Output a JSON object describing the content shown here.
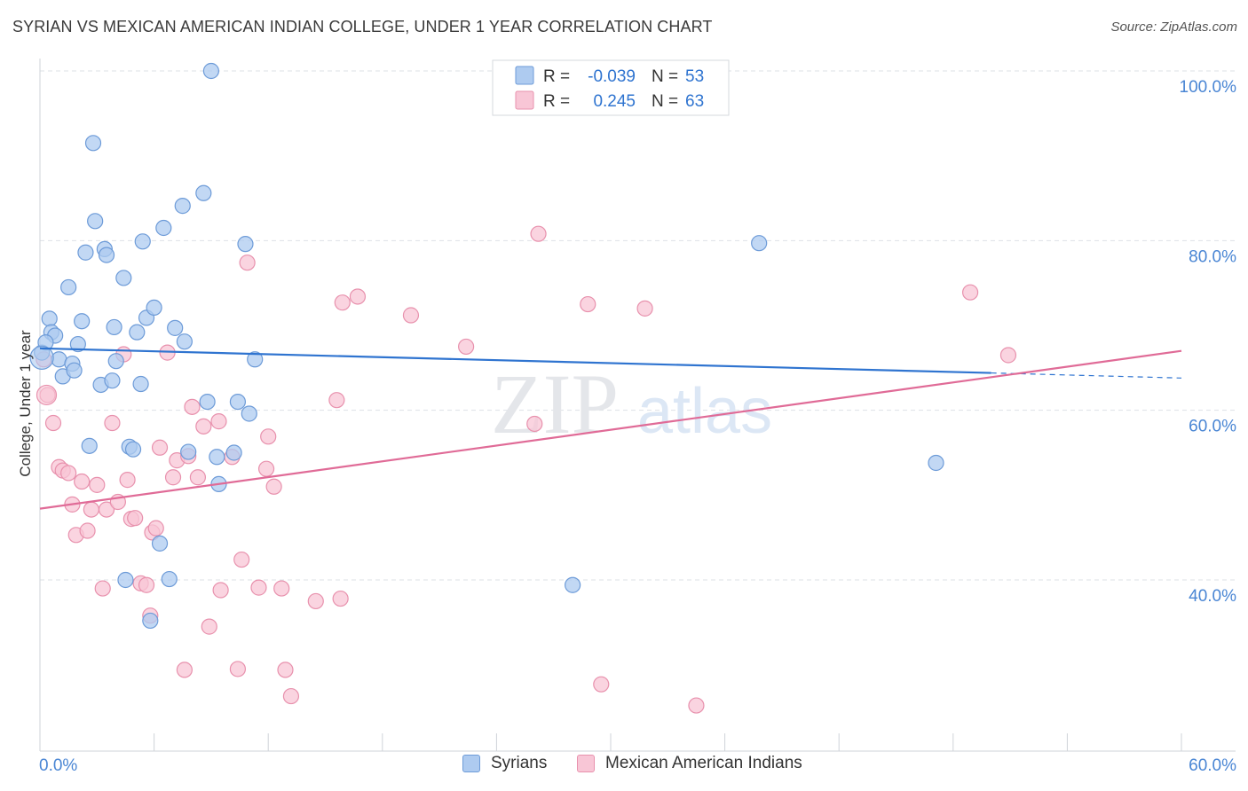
{
  "title": "SYRIAN VS MEXICAN AMERICAN INDIAN COLLEGE, UNDER 1 YEAR CORRELATION CHART",
  "source": "Source: ZipAtlas.com",
  "watermark": {
    "zip": "ZIP",
    "atlas": "atlas"
  },
  "colors": {
    "syrians_fill": "#aecbf0",
    "syrians_stroke": "#6d9bd8",
    "syrians_line": "#2f74d0",
    "mexican_fill": "#f8c6d6",
    "mexican_stroke": "#e891ad",
    "mexican_line": "#e06b97",
    "axis_label_color": "#4a86d4",
    "grid": "#dde1e6"
  },
  "stats_legend": [
    {
      "r_label": "R = ",
      "r_value": "-0.039",
      "n_label": "N = ",
      "n_value": "53"
    },
    {
      "r_label": "R = ",
      "r_value": "0.245",
      "n_label": "N = ",
      "n_value": "63"
    }
  ],
  "chart_data": {
    "type": "scatter",
    "title": "SYRIAN VS MEXICAN AMERICAN INDIAN COLLEGE, UNDER 1 YEAR CORRELATION CHART",
    "xlabel": "",
    "ylabel": "College, Under 1 year",
    "xlim": [
      0,
      60
    ],
    "ylim": [
      20,
      102
    ],
    "x_tick_labels": [
      "0.0%",
      "60.0%"
    ],
    "y_ticks": [
      40,
      60,
      80,
      100
    ],
    "y_tick_labels": [
      "40.0%",
      "60.0%",
      "80.0%",
      "100.0%"
    ],
    "grid": true,
    "legend_position": "bottom",
    "series": [
      {
        "name": "Syrians",
        "r": -0.039,
        "n": 53,
        "trend": {
          "x0": 0,
          "y0": 67.3,
          "x1": 50,
          "y1": 64.4,
          "dashed_to_x": 60,
          "dashed_to_y": 63.8
        },
        "points": [
          [
            0.1,
            66.8
          ],
          [
            0.5,
            70.8
          ],
          [
            0.6,
            69.2
          ],
          [
            0.8,
            68.8
          ],
          [
            1.0,
            66.0
          ],
          [
            1.2,
            64.0
          ],
          [
            1.5,
            74.5
          ],
          [
            1.7,
            65.5
          ],
          [
            1.8,
            64.7
          ],
          [
            2.0,
            67.8
          ],
          [
            2.2,
            70.5
          ],
          [
            2.4,
            78.6
          ],
          [
            2.6,
            55.8
          ],
          [
            2.8,
            91.5
          ],
          [
            2.9,
            82.3
          ],
          [
            3.2,
            63.0
          ],
          [
            3.4,
            79.0
          ],
          [
            3.5,
            78.3
          ],
          [
            3.8,
            63.5
          ],
          [
            3.9,
            69.8
          ],
          [
            4.0,
            65.8
          ],
          [
            4.4,
            75.6
          ],
          [
            4.5,
            40.0
          ],
          [
            4.7,
            55.7
          ],
          [
            4.9,
            55.4
          ],
          [
            5.1,
            69.2
          ],
          [
            5.3,
            63.1
          ],
          [
            5.4,
            79.9
          ],
          [
            5.6,
            70.9
          ],
          [
            5.8,
            35.2
          ],
          [
            6.0,
            72.1
          ],
          [
            6.3,
            44.3
          ],
          [
            6.5,
            81.5
          ],
          [
            6.8,
            40.1
          ],
          [
            7.1,
            69.7
          ],
          [
            7.5,
            84.1
          ],
          [
            7.6,
            68.1
          ],
          [
            7.8,
            55.1
          ],
          [
            8.6,
            85.6
          ],
          [
            8.8,
            61.0
          ],
          [
            9.0,
            100.0
          ],
          [
            9.3,
            54.5
          ],
          [
            9.4,
            51.3
          ],
          [
            10.2,
            55.0
          ],
          [
            10.4,
            61.0
          ],
          [
            10.8,
            79.6
          ],
          [
            11.0,
            59.6
          ],
          [
            11.3,
            66.0
          ],
          [
            28.0,
            39.4
          ],
          [
            27.9,
            100.0
          ],
          [
            37.8,
            79.7
          ],
          [
            47.1,
            53.8
          ],
          [
            0.3,
            68.0
          ]
        ]
      },
      {
        "name": "Mexican American Indians",
        "r": 0.245,
        "n": 63,
        "trend": {
          "x0": 0,
          "y0": 48.4,
          "x1": 60,
          "y1": 67.0
        },
        "points": [
          [
            0.2,
            66.0
          ],
          [
            0.4,
            61.8
          ],
          [
            0.7,
            58.5
          ],
          [
            1.0,
            53.3
          ],
          [
            1.2,
            52.9
          ],
          [
            1.5,
            52.6
          ],
          [
            1.7,
            48.9
          ],
          [
            1.9,
            45.3
          ],
          [
            2.2,
            51.6
          ],
          [
            2.5,
            45.8
          ],
          [
            2.7,
            48.3
          ],
          [
            3.0,
            51.2
          ],
          [
            3.3,
            39.0
          ],
          [
            3.5,
            48.3
          ],
          [
            3.8,
            58.5
          ],
          [
            4.1,
            49.2
          ],
          [
            4.4,
            66.6
          ],
          [
            4.6,
            51.8
          ],
          [
            4.8,
            47.2
          ],
          [
            5.0,
            47.3
          ],
          [
            5.3,
            39.6
          ],
          [
            5.6,
            39.4
          ],
          [
            5.8,
            35.8
          ],
          [
            5.9,
            45.6
          ],
          [
            6.1,
            46.1
          ],
          [
            6.3,
            55.6
          ],
          [
            6.7,
            66.8
          ],
          [
            7.0,
            52.1
          ],
          [
            7.2,
            54.1
          ],
          [
            7.6,
            29.4
          ],
          [
            7.8,
            54.6
          ],
          [
            8.0,
            60.4
          ],
          [
            8.3,
            52.1
          ],
          [
            8.6,
            58.1
          ],
          [
            8.9,
            34.5
          ],
          [
            9.4,
            58.7
          ],
          [
            9.5,
            38.8
          ],
          [
            10.1,
            54.5
          ],
          [
            10.4,
            29.5
          ],
          [
            10.6,
            42.4
          ],
          [
            10.9,
            77.4
          ],
          [
            11.5,
            39.1
          ],
          [
            11.9,
            53.1
          ],
          [
            12.0,
            56.9
          ],
          [
            12.3,
            51.0
          ],
          [
            12.7,
            39.0
          ],
          [
            12.9,
            29.4
          ],
          [
            13.2,
            26.3
          ],
          [
            14.5,
            37.5
          ],
          [
            15.6,
            61.2
          ],
          [
            15.9,
            72.7
          ],
          [
            15.8,
            37.8
          ],
          [
            16.7,
            73.4
          ],
          [
            19.5,
            71.2
          ],
          [
            22.4,
            67.5
          ],
          [
            26.0,
            58.4
          ],
          [
            26.2,
            80.8
          ],
          [
            28.8,
            72.5
          ],
          [
            29.5,
            27.7
          ],
          [
            31.8,
            72.0
          ],
          [
            34.5,
            25.2
          ],
          [
            48.9,
            73.9
          ],
          [
            50.9,
            66.5
          ]
        ]
      }
    ]
  }
}
